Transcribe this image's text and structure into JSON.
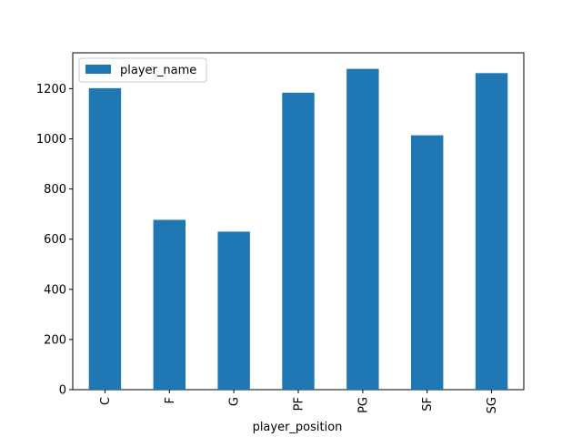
{
  "chart_data": {
    "type": "bar",
    "categories": [
      "C",
      "F",
      "G",
      "PF",
      "PG",
      "SF",
      "SG"
    ],
    "series": [
      {
        "name": "player_name",
        "values": [
          1202,
          677,
          630,
          1184,
          1279,
          1014,
          1262
        ],
        "color": "#1f77b4"
      }
    ],
    "xlabel": "player_position",
    "ylabel": "",
    "ylim": [
      0,
      1343
    ],
    "yticks": [
      0,
      200,
      400,
      600,
      800,
      1000,
      1200
    ],
    "grid": false,
    "legend_position": "upper-left",
    "x_tick_rotation": 90
  }
}
